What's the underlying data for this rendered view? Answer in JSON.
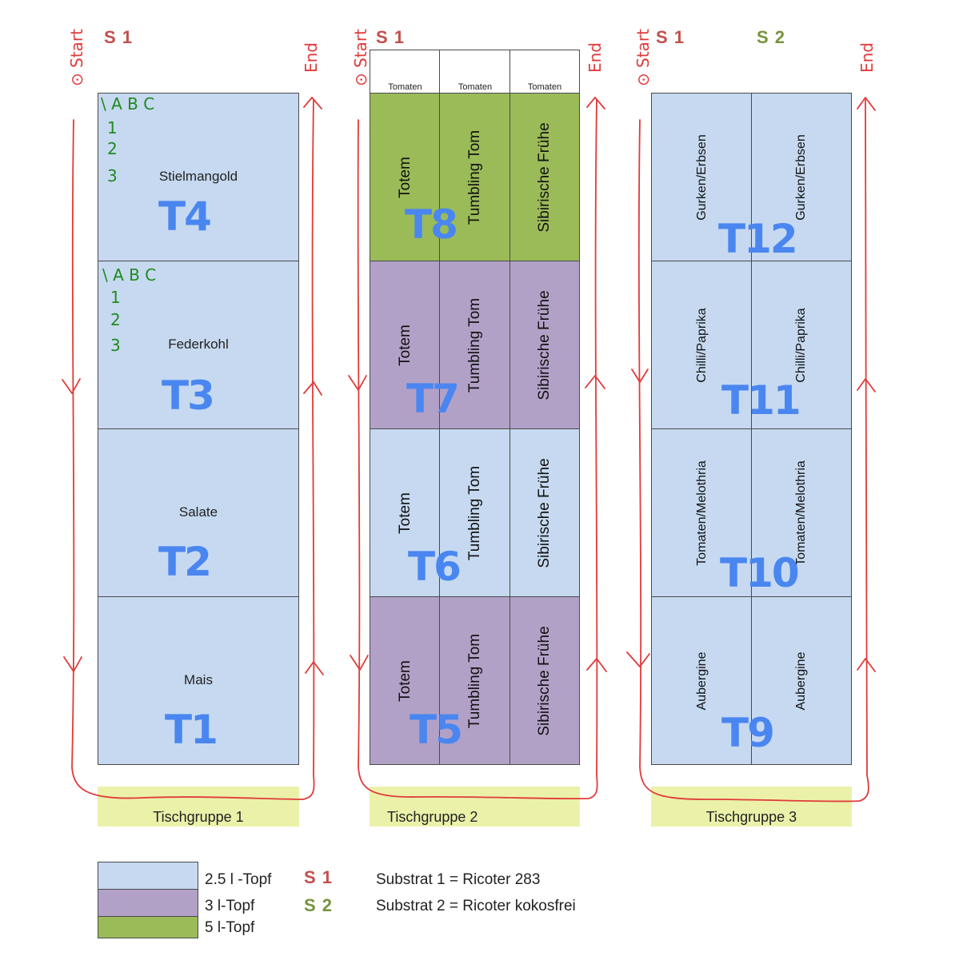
{
  "substrate_headers": {
    "g1": "S 1",
    "g2": "S 1",
    "g3a": "S 1",
    "g3b": "S 2"
  },
  "group1": {
    "label": "Tischgruppe 1",
    "cells": [
      "Stielmangold",
      "Federkohl",
      "Salate",
      "Mais"
    ],
    "handwritten_tables": [
      "T4",
      "T3",
      "T2",
      "T1"
    ]
  },
  "group2": {
    "label": "Tischgruppe 2",
    "header_cells": [
      "Tomaten",
      "Tomaten",
      "Tomaten"
    ],
    "columns": [
      "Totem",
      "Tumbling Tom",
      "Sibirische Frühe"
    ],
    "handwritten_tables": [
      "T8",
      "T7",
      "T6",
      "T5"
    ]
  },
  "group3": {
    "label": "Tischgruppe 3",
    "rows": [
      "Gurken/Erbsen",
      "Chilli/Paprika",
      "Tomaten/Melothria",
      "Aubergine"
    ],
    "handwritten_tables": [
      "T12",
      "T11",
      "T10",
      "T9"
    ]
  },
  "handwritten_grid": {
    "cols": "\\ A B C",
    "rows": [
      "1",
      "2",
      "3"
    ]
  },
  "handwritten_path": {
    "start": "Start",
    "end": "End",
    "start_mark": "⊙"
  },
  "legend": {
    "items": [
      {
        "label": "2.5 l -Topf",
        "color": "#c6d9f0"
      },
      {
        "label": "3 l-Topf",
        "color": "#b2a1c7"
      },
      {
        "label": "5 l-Topf",
        "color": "#9bbb59"
      }
    ],
    "substrates": [
      {
        "code": "S 1",
        "color": "#c0504d",
        "desc": "Substrat 1 = Ricoter 283"
      },
      {
        "code": "S 2",
        "color": "#77933c",
        "desc": "Substrat 2 = Ricoter kokosfrei"
      }
    ]
  },
  "colors": {
    "blue": "#c6d9f0",
    "purple": "#b2a1c7",
    "green": "#9bbb59",
    "group_label_bg": "#ebf1a9",
    "handwriting_blue": "#4a86f0",
    "handwriting_red": "#e03a3a",
    "handwriting_green": "#1f8a1f"
  }
}
